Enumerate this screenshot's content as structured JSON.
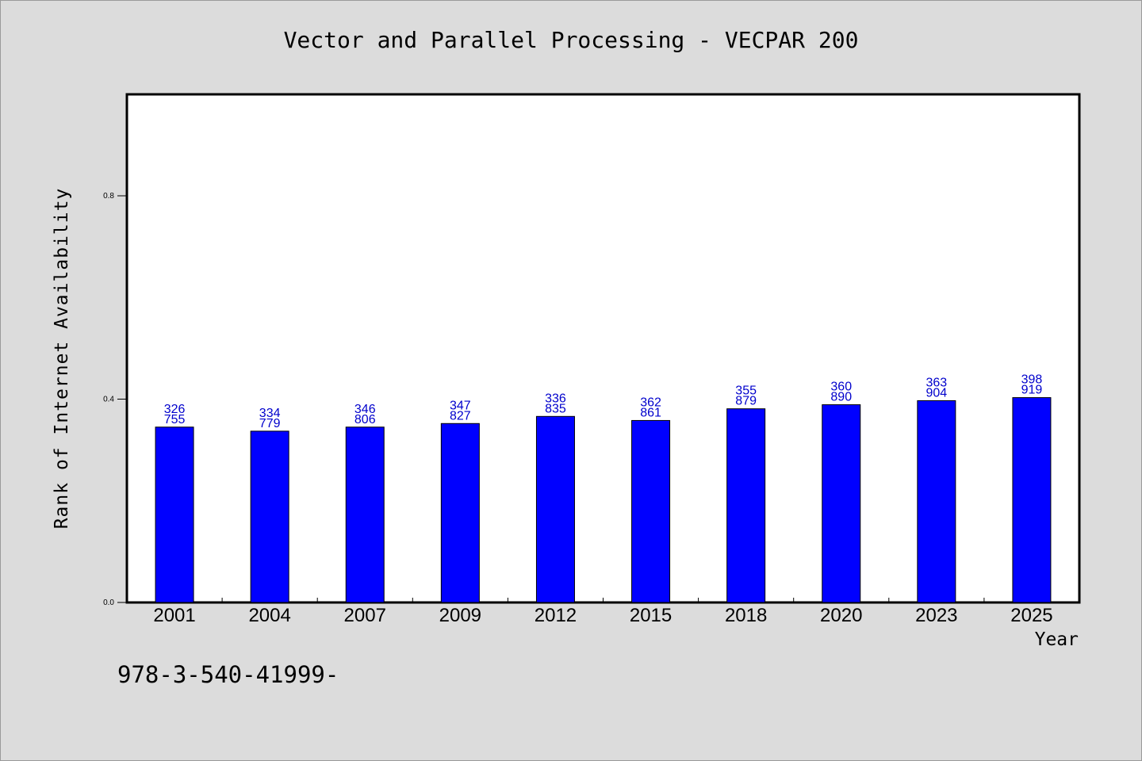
{
  "chart_data": {
    "type": "bar",
    "title": "Vector and Parallel Processing - VECPAR 200",
    "xlabel": "Year",
    "ylabel": "Rank of Internet Availability",
    "categories": [
      "2001",
      "2004",
      "2007",
      "2009",
      "2012",
      "2015",
      "2018",
      "2020",
      "2023",
      "2025"
    ],
    "series": [
      {
        "values": [
          0.345,
          0.337,
          0.345,
          0.352,
          0.366,
          0.358,
          0.381,
          0.389,
          0.397,
          0.403
        ]
      }
    ],
    "data_labels": [
      [
        "326",
        "755"
      ],
      [
        "334",
        "779"
      ],
      [
        "346",
        "806"
      ],
      [
        "347",
        "827"
      ],
      [
        "336",
        "835"
      ],
      [
        "362",
        "861"
      ],
      [
        "355",
        "879"
      ],
      [
        "360",
        "890"
      ],
      [
        "363",
        "904"
      ],
      [
        "398",
        "919"
      ]
    ],
    "yticks": [
      "0.0",
      "0.4",
      "0.8"
    ],
    "ylim": [
      0,
      1.0
    ],
    "grid": false,
    "bar_color": "#0000ff",
    "label_color": "#0000cc",
    "background": "#dcdcdc",
    "plot_background": "#ffffff"
  },
  "footnote": "978-3-540-41999-"
}
